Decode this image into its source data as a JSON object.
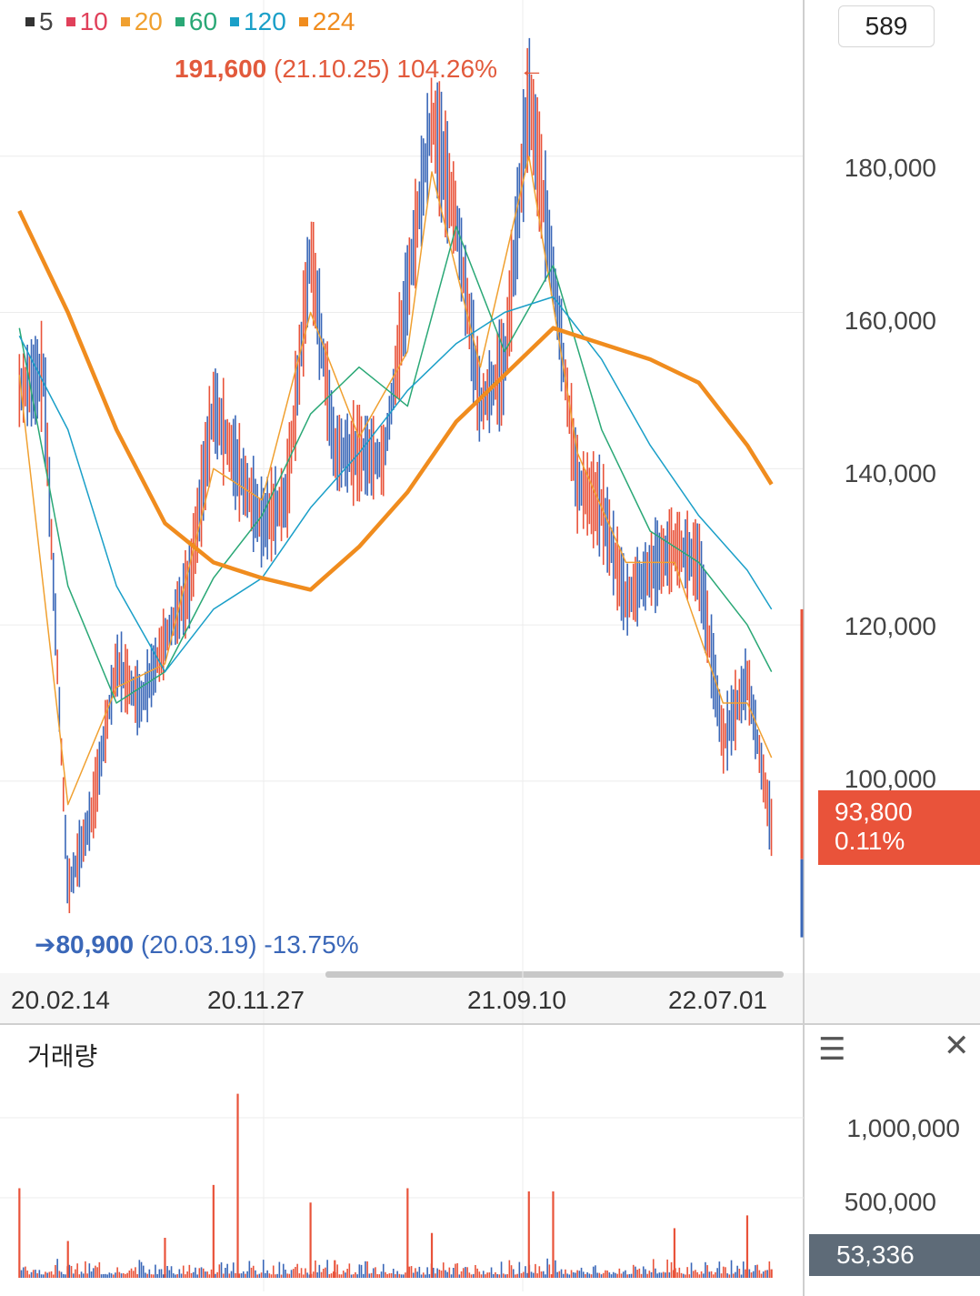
{
  "legend": [
    {
      "label": "5",
      "color": "#333333"
    },
    {
      "label": "10",
      "color": "#e0405a"
    },
    {
      "label": "20",
      "color": "#f0a030"
    },
    {
      "label": "60",
      "color": "#2aa876"
    },
    {
      "label": "120",
      "color": "#1a9fc8"
    },
    {
      "label": "224",
      "color": "#f08c1e"
    }
  ],
  "count_box": "589",
  "high_annotation": {
    "price": "191,600",
    "date": "(21.10.25)",
    "pct": "104.26%",
    "arrow": "←"
  },
  "low_annotation": {
    "arrow": "➔",
    "price": "80,900",
    "date": "(20.03.19)",
    "pct": "-13.75%"
  },
  "current_price": {
    "price": "93,800",
    "change": "0.11%"
  },
  "volume_panel": {
    "title": "거래량",
    "current_volume": "53,336",
    "menu_icon": "hamburger-menu-icon",
    "close_icon": "close-icon"
  },
  "colors": {
    "up": "#e9533a",
    "down": "#3a67b8",
    "ma224": "#f08c1e"
  },
  "chart_data": [
    {
      "type": "line",
      "subtype": "candlestick-with-moving-averages",
      "x_tick_labels": [
        "20.02.14",
        "20.11.27",
        "21.09.10",
        "22.07.01"
      ],
      "y_tick_labels": [
        "180,000",
        "160,000",
        "140,000",
        "120,000",
        "100,000"
      ],
      "ylim": [
        76000,
        200000
      ],
      "grid": true,
      "legend_position": "top-left",
      "series": [
        {
          "name": "price",
          "points": [
            [
              "20.01",
              150000
            ],
            [
              "20.02",
              152000
            ],
            [
              "20.03",
              86000
            ],
            [
              "20.04",
              96000
            ],
            [
              "20.05",
              115000
            ],
            [
              "20.06",
              110000
            ],
            [
              "20.07",
              118000
            ],
            [
              "20.08",
              125000
            ],
            [
              "20.09",
              148000
            ],
            [
              "20.10",
              140000
            ],
            [
              "20.11",
              133000
            ],
            [
              "20.12",
              136000
            ],
            [
              "21.01",
              168000
            ],
            [
              "21.02",
              142000
            ],
            [
              "21.03",
              142000
            ],
            [
              "21.04",
              141000
            ],
            [
              "21.05",
              163000
            ],
            [
              "21.06",
              185000
            ],
            [
              "21.07",
              172000
            ],
            [
              "21.08",
              148000
            ],
            [
              "21.09",
              153000
            ],
            [
              "21.10",
              188000
            ],
            [
              "21.11",
              165000
            ],
            [
              "21.12",
              138000
            ],
            [
              "22.01",
              135000
            ],
            [
              "22.02",
              123000
            ],
            [
              "22.03",
              127000
            ],
            [
              "22.04",
              130000
            ],
            [
              "22.05",
              128000
            ],
            [
              "22.06",
              105000
            ],
            [
              "22.07",
              113000
            ],
            [
              "22.08",
              94000
            ]
          ]
        },
        {
          "name": "20",
          "points": [
            [
              "20.01",
              152000
            ],
            [
              "20.03",
              97000
            ],
            [
              "20.05",
              112000
            ],
            [
              "20.07",
              115000
            ],
            [
              "20.09",
              140000
            ],
            [
              "20.11",
              136000
            ],
            [
              "21.01",
              160000
            ],
            [
              "21.03",
              144000
            ],
            [
              "21.05",
              155000
            ],
            [
              "21.06",
              178000
            ],
            [
              "21.08",
              153000
            ],
            [
              "21.10",
              180000
            ],
            [
              "21.12",
              142000
            ],
            [
              "22.02",
              128000
            ],
            [
              "22.04",
              128000
            ],
            [
              "22.06",
              110000
            ],
            [
              "22.07",
              110000
            ],
            [
              "22.08",
              103000
            ]
          ]
        },
        {
          "name": "60",
          "points": [
            [
              "20.01",
              158000
            ],
            [
              "20.03",
              125000
            ],
            [
              "20.05",
              110000
            ],
            [
              "20.07",
              114000
            ],
            [
              "20.09",
              126000
            ],
            [
              "20.11",
              134000
            ],
            [
              "21.01",
              147000
            ],
            [
              "21.03",
              153000
            ],
            [
              "21.05",
              148000
            ],
            [
              "21.07",
              171000
            ],
            [
              "21.09",
              155000
            ],
            [
              "21.11",
              166000
            ],
            [
              "22.01",
              145000
            ],
            [
              "22.03",
              132000
            ],
            [
              "22.05",
              128000
            ],
            [
              "22.07",
              120000
            ],
            [
              "22.08",
              114000
            ]
          ]
        },
        {
          "name": "120",
          "points": [
            [
              "20.01",
              157000
            ],
            [
              "20.03",
              145000
            ],
            [
              "20.05",
              125000
            ],
            [
              "20.07",
              114000
            ],
            [
              "20.09",
              122000
            ],
            [
              "20.11",
              126000
            ],
            [
              "21.01",
              135000
            ],
            [
              "21.03",
              142000
            ],
            [
              "21.05",
              150000
            ],
            [
              "21.07",
              156000
            ],
            [
              "21.09",
              160000
            ],
            [
              "21.11",
              162000
            ],
            [
              "22.01",
              154000
            ],
            [
              "22.03",
              143000
            ],
            [
              "22.05",
              134000
            ],
            [
              "22.07",
              127000
            ],
            [
              "22.08",
              122000
            ]
          ]
        },
        {
          "name": "224",
          "points": [
            [
              "20.01",
              173000
            ],
            [
              "20.03",
              160000
            ],
            [
              "20.05",
              145000
            ],
            [
              "20.07",
              133000
            ],
            [
              "20.09",
              128000
            ],
            [
              "20.11",
              126000
            ],
            [
              "21.01",
              124500
            ],
            [
              "21.03",
              130000
            ],
            [
              "21.05",
              137000
            ],
            [
              "21.07",
              146000
            ],
            [
              "21.09",
              152000
            ],
            [
              "21.11",
              158000
            ],
            [
              "22.01",
              156000
            ],
            [
              "22.03",
              154000
            ],
            [
              "22.05",
              151000
            ],
            [
              "22.07",
              143000
            ],
            [
              "22.08",
              138000
            ]
          ]
        }
      ]
    },
    {
      "type": "bar",
      "title": "거래량",
      "y_tick_labels": [
        "1,000,000",
        "500,000"
      ],
      "ylim": [
        0,
        1250000
      ],
      "spikes": [
        {
          "x": "20.01",
          "value": 560000
        },
        {
          "x": "20.03",
          "value": 230000
        },
        {
          "x": "20.07",
          "value": 250000
        },
        {
          "x": "20.09",
          "value": 580000
        },
        {
          "x": "20.10",
          "value": 1150000
        },
        {
          "x": "21.01",
          "value": 470000
        },
        {
          "x": "21.02",
          "value": 110000
        },
        {
          "x": "21.05",
          "value": 560000
        },
        {
          "x": "21.06",
          "value": 280000
        },
        {
          "x": "21.10",
          "value": 540000
        },
        {
          "x": "21.11",
          "value": 540000
        },
        {
          "x": "22.04",
          "value": 310000
        },
        {
          "x": "22.07",
          "value": 390000
        },
        {
          "x": "22.08",
          "value": 53336
        }
      ]
    }
  ]
}
